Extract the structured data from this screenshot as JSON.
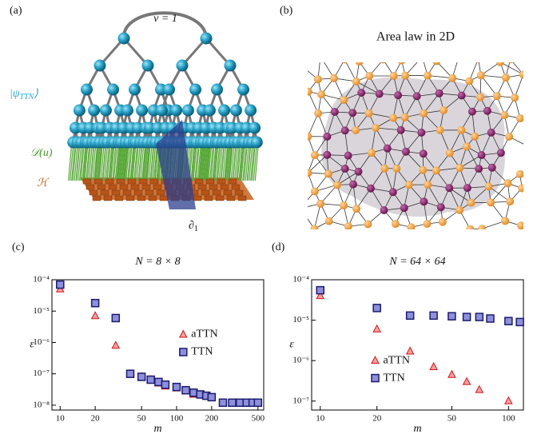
{
  "panels": {
    "a": {
      "label": "(a)",
      "nu": "ν = 1",
      "psi": [
        "|ψ",
        "TTN",
        "⟩"
      ],
      "dlabel": "𝒟(u)",
      "hlabel": "ℋ",
      "partial": [
        "∂",
        "1"
      ]
    },
    "b": {
      "label": "(b)",
      "title": "Area law in 2D"
    }
  },
  "chart_data": [
    {
      "type": "scatter",
      "panel_label": "(c)",
      "title": "N = 8 × 8",
      "xlabel": "m",
      "ylabel": "ε",
      "log_x": true,
      "log_y": true,
      "legend": "center right",
      "xlim": [
        8.5,
        560
      ],
      "ylim": [
        7e-09,
        0.0001
      ],
      "xticks": [
        10,
        20,
        50,
        100,
        200,
        500
      ],
      "yticks": [
        {
          "value": 0.0001,
          "label": "10⁻⁴"
        },
        {
          "value": 1e-05,
          "label": "10⁻⁵"
        },
        {
          "value": 1e-06,
          "label": "10⁻⁶"
        },
        {
          "value": 1e-07,
          "label": "10⁻⁷"
        },
        {
          "value": 1e-08,
          "label": "10⁻⁸"
        }
      ],
      "series": [
        {
          "name": "aTTN",
          "marker": "triangle",
          "color": "#d01818",
          "fill": "#f2a0a0",
          "x": [
            10,
            20,
            30,
            40,
            50,
            60,
            70,
            80,
            100,
            120,
            140
          ],
          "values": [
            5e-05,
            7e-06,
            8e-07,
            1e-07,
            8e-08,
            6.5e-08,
            5e-08,
            4e-08,
            3.5e-08,
            2.8e-08,
            2.2e-08
          ]
        },
        {
          "name": "TTN",
          "marker": "square",
          "color": "#1a1a6e",
          "fill": "#8f90dc",
          "x": [
            10,
            20,
            30,
            40,
            50,
            60,
            70,
            80,
            100,
            120,
            140,
            160,
            180,
            200,
            250,
            300,
            350,
            400,
            450,
            500
          ],
          "values": [
            7e-05,
            1.8e-05,
            6e-06,
            1e-07,
            8e-08,
            6.5e-08,
            5.5e-08,
            4.5e-08,
            3.8e-08,
            3e-08,
            2.5e-08,
            2.2e-08,
            2e-08,
            1.8e-08,
            1.2e-08,
            1.2e-08,
            1.2e-08,
            1.2e-08,
            1.2e-08,
            1.2e-08
          ]
        }
      ]
    },
    {
      "type": "scatter",
      "panel_label": "(d)",
      "title": "N = 64 × 64",
      "xlabel": "m",
      "ylabel": "ε",
      "log_x": true,
      "log_y": true,
      "legend": "lower left",
      "xlim": [
        9,
        120
      ],
      "ylim": [
        6e-08,
        0.0001
      ],
      "xticks": [
        10,
        20,
        50,
        100
      ],
      "yticks": [
        {
          "value": 0.0001,
          "label": "10⁻⁴"
        },
        {
          "value": 1e-05,
          "label": "10⁻⁵"
        },
        {
          "value": 1e-06,
          "label": "10⁻⁶"
        },
        {
          "value": 1e-07,
          "label": "10⁻⁷"
        }
      ],
      "series": [
        {
          "name": "aTTN",
          "marker": "triangle",
          "color": "#d01818",
          "fill": "#f2a0a0",
          "x": [
            10,
            20,
            30,
            40,
            50,
            60,
            70,
            100
          ],
          "values": [
            4e-05,
            6e-06,
            1.7e-06,
            7e-07,
            4.5e-07,
            3e-07,
            1.9e-07,
            1e-07
          ]
        },
        {
          "name": "TTN",
          "marker": "square",
          "color": "#1a1a6e",
          "fill": "#8f90dc",
          "x": [
            10,
            20,
            30,
            40,
            50,
            60,
            70,
            80,
            100,
            115
          ],
          "values": [
            5.5e-05,
            2e-05,
            1.3e-05,
            1.3e-05,
            1.25e-05,
            1.2e-05,
            1.2e-05,
            1.1e-05,
            9.5e-06,
            9e-06
          ]
        }
      ]
    }
  ]
}
